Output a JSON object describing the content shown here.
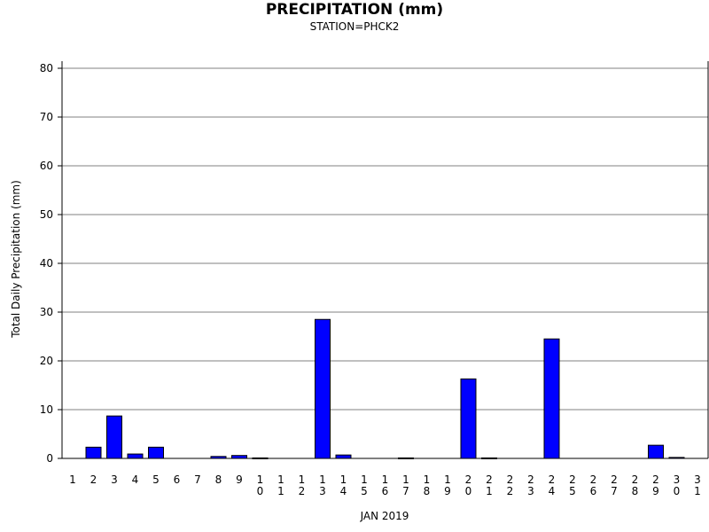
{
  "chart_data": {
    "type": "bar",
    "title": "PRECIPITATION (mm)",
    "subtitle": "STATION=PHCK2",
    "xlabel": "JAN 2019",
    "ylabel": "Total Daily Precipitation (mm)",
    "ylim": [
      0,
      80
    ],
    "yticks": [
      0,
      10,
      20,
      30,
      40,
      50,
      60,
      70,
      80
    ],
    "grid": true,
    "bar_color": "#0000ff",
    "categories": [
      "1",
      "2",
      "3",
      "4",
      "5",
      "6",
      "7",
      "8",
      "9",
      "10",
      "11",
      "12",
      "13",
      "14",
      "15",
      "16",
      "17",
      "18",
      "19",
      "20",
      "21",
      "22",
      "23",
      "24",
      "25",
      "26",
      "27",
      "28",
      "29",
      "30",
      "31"
    ],
    "values": [
      0,
      2.3,
      8.7,
      0.9,
      2.3,
      0,
      0,
      0.4,
      0.6,
      0.1,
      0,
      0,
      28.5,
      0.7,
      0,
      0,
      0.1,
      0,
      0,
      16.3,
      0.1,
      0,
      0,
      24.5,
      0,
      0,
      0,
      0,
      2.7,
      0.2,
      0
    ]
  }
}
